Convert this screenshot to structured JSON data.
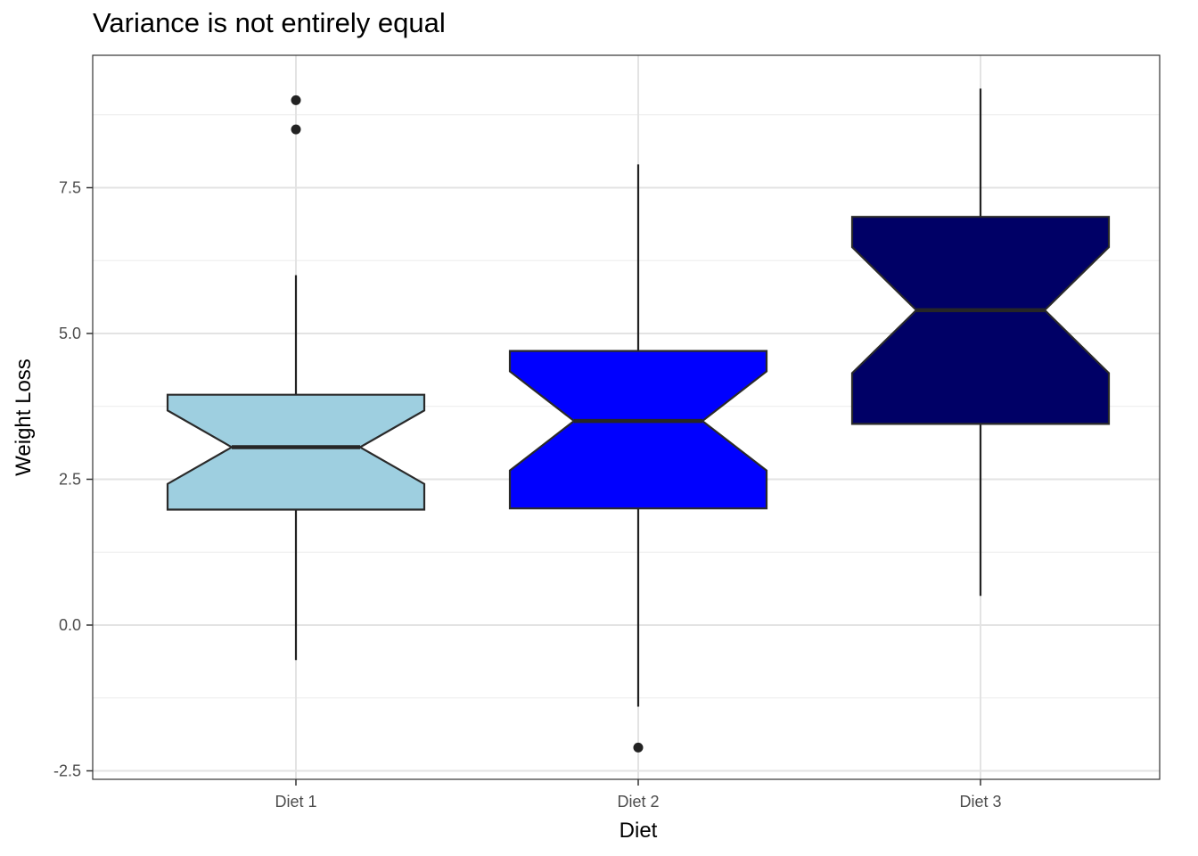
{
  "chart_data": {
    "type": "box",
    "title": "Variance is not entirely equal",
    "xlabel": "Diet",
    "ylabel": "Weight Loss",
    "ylim": [
      -2.6,
      9.8
    ],
    "yticks": [
      -2.5,
      0.0,
      2.5,
      5.0,
      7.5
    ],
    "ytick_labels": [
      "-2.5",
      "0.0",
      "2.5",
      "5.0",
      "7.5"
    ],
    "notched": true,
    "grid": true,
    "categories": [
      "Diet 1",
      "Diet 2",
      "Diet 3"
    ],
    "boxes": [
      {
        "category": "Diet 1",
        "color": "#9ecfe0",
        "whisker_low": -0.6,
        "q1": 1.98,
        "median": 3.05,
        "q3": 3.95,
        "whisker_high": 6.0,
        "notch_low": 2.42,
        "notch_high": 3.68,
        "outliers": [
          8.5,
          9.0
        ]
      },
      {
        "category": "Diet 2",
        "color": "#0000ff",
        "whisker_low": -1.4,
        "q1": 2.0,
        "median": 3.5,
        "q3": 4.7,
        "whisker_high": 7.9,
        "notch_low": 2.65,
        "notch_high": 4.35,
        "outliers": [
          -2.1
        ]
      },
      {
        "category": "Diet 3",
        "color": "#000066",
        "whisker_low": 0.5,
        "q1": 3.45,
        "median": 5.4,
        "q3": 7.0,
        "whisker_high": 9.2,
        "notch_low": 4.32,
        "notch_high": 6.48,
        "outliers": []
      }
    ]
  }
}
